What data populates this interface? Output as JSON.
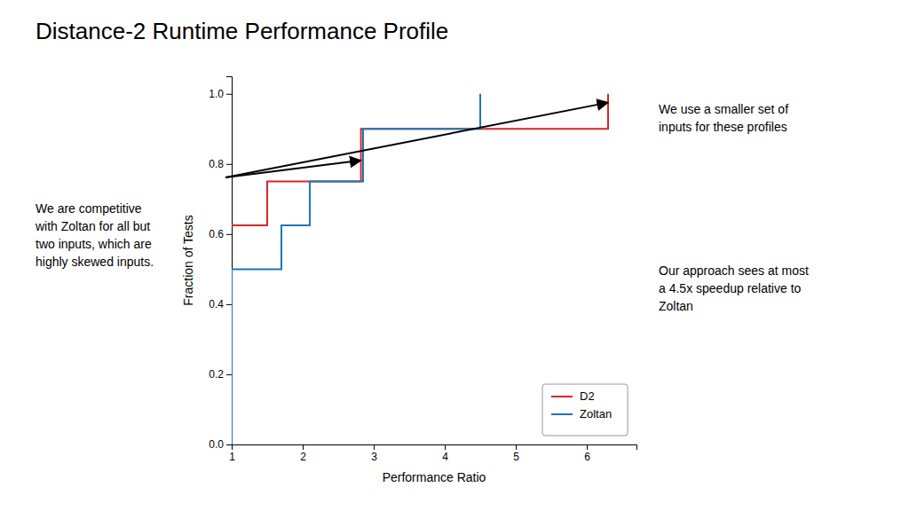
{
  "chart_data": {
    "type": "line",
    "title": "Distance-2 Runtime Performance Profile",
    "x_label": "Performance Ratio",
    "y_label": "Fraction of Tests",
    "series": [
      {
        "name": "D2",
        "color": "#d62728",
        "x": [
          1.0,
          1.0,
          1.5,
          1.5,
          2.82,
          2.82,
          6.3,
          6.3
        ],
        "values": [
          0.625,
          0.625,
          0.625,
          0.75,
          0.75,
          0.9,
          0.9,
          1.0
        ]
      },
      {
        "name": "Zoltan",
        "color": "#1f77b4",
        "x": [
          1.0,
          1.0,
          1.7,
          1.7,
          2.1,
          2.1,
          2.85,
          2.85,
          4.5,
          4.5
        ],
        "values": [
          0.0,
          0.5,
          0.5,
          0.625,
          0.625,
          0.75,
          0.75,
          0.9,
          0.9,
          1.0
        ]
      }
    ],
    "xlim": [
      1,
      6.7
    ],
    "ylim": [
      0.0,
      1.05
    ],
    "xticks": [
      1,
      2,
      3,
      4,
      5,
      6
    ],
    "yticks": [
      {
        "value": 0.0,
        "label": "0.0"
      },
      0.2,
      0.4,
      0.6,
      0.8,
      {
        "value": 1.0,
        "label": "1.0"
      }
    ],
    "grid": false,
    "legend": "lower right",
    "annotations": [
      {
        "text": "We are competitive\nwith Zoltan for all but\ntwo inputs, which are\nhighly skewed inputs.",
        "points": [
          {
            "x": 6.3,
            "y": 0.975
          },
          {
            "x": 2.82,
            "y": 0.81
          }
        ]
      },
      {
        "text": "We use a smaller set of\ninputs for these profiles"
      },
      {
        "text": "Our approach sees at most\na 4.5x speedup relative to\nZoltan"
      }
    ]
  }
}
